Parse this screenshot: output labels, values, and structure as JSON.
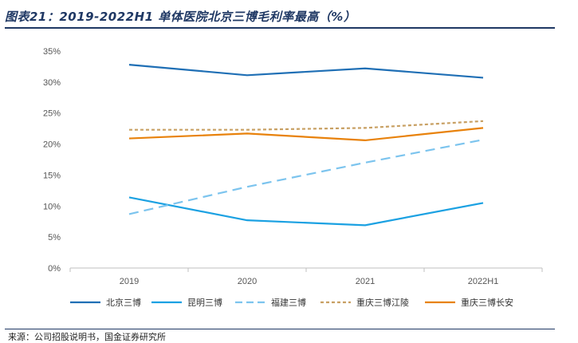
{
  "header": {
    "title": "图表21：2019-2022H1 单体医院北京三博毛利率最高（%）"
  },
  "footer": {
    "source": "来源：公司招股说明书，国金证券研究所"
  },
  "chart_data": {
    "type": "line",
    "title": "图表21：2019-2022H1 单体医院北京三博毛利率最高（%）",
    "xlabel": "",
    "ylabel": "",
    "categories": [
      "2019",
      "2020",
      "2021",
      "2022H1"
    ],
    "ylim": [
      0,
      35
    ],
    "yticks": [
      0,
      5,
      10,
      15,
      20,
      25,
      30,
      35
    ],
    "ytick_labels": [
      "0%",
      "5%",
      "10%",
      "15%",
      "20%",
      "25%",
      "30%",
      "35%"
    ],
    "grid": false,
    "legend_position": "bottom",
    "series": [
      {
        "name": "北京三博",
        "values": [
          32.8,
          31.1,
          32.2,
          30.7
        ],
        "color": "#1f6fb5",
        "dash": "solid"
      },
      {
        "name": "昆明三博",
        "values": [
          11.4,
          7.7,
          6.9,
          10.5
        ],
        "color": "#1ba1e2",
        "dash": "solid"
      },
      {
        "name": "福建三博",
        "values": [
          8.7,
          13.1,
          17.0,
          20.7
        ],
        "color": "#7cc4ee",
        "dash": "longdash"
      },
      {
        "name": "重庆三博江陵",
        "values": [
          22.3,
          22.3,
          22.6,
          23.7
        ],
        "color": "#c8a063",
        "dash": "dotted"
      },
      {
        "name": "重庆三博长安",
        "values": [
          20.9,
          21.7,
          20.6,
          22.6
        ],
        "color": "#e8820c",
        "dash": "solid"
      }
    ]
  }
}
